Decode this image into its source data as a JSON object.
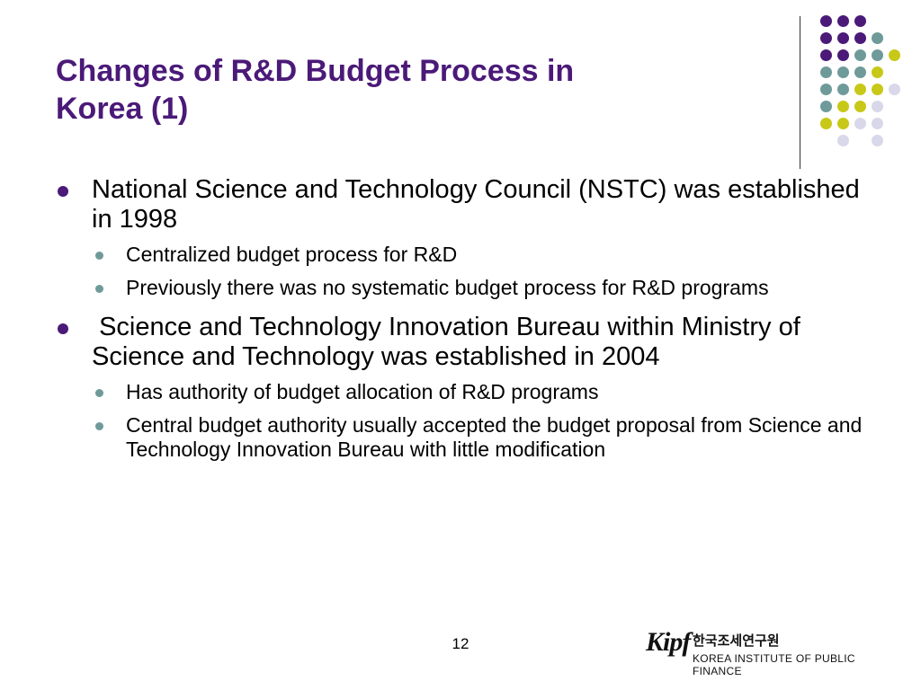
{
  "slide": {
    "title_line1": "Changes of R&D Budget Process in",
    "title_line2": "Korea (1)",
    "page_number": "12"
  },
  "colors": {
    "title": "#4b1a78",
    "dot_purple": "#4b1a78",
    "dot_teal": "#6f9a9a",
    "dot_yellow": "#c8c818",
    "dot_lavender": "#d8d8ea"
  },
  "bullets": [
    {
      "text": "National Science and Technology Council (NSTC) was established in 1998",
      "sub": [
        "Centralized budget process for R&D",
        "Previously there was no systematic budget process for R&D programs"
      ]
    },
    {
      "text": " Science and Technology Innovation Bureau within Ministry of Science and Technology was established in 2004",
      "sub": [
        "Has authority of budget allocation of R&D programs",
        "Central budget authority usually accepted the budget proposal from Science and Technology Innovation Bureau with little modification"
      ]
    }
  ],
  "logo": {
    "mark": "Kipf",
    "korean_name": "한국조세연구원",
    "english_name": "KOREA INSTITUTE OF PUBLIC FINANCE"
  }
}
